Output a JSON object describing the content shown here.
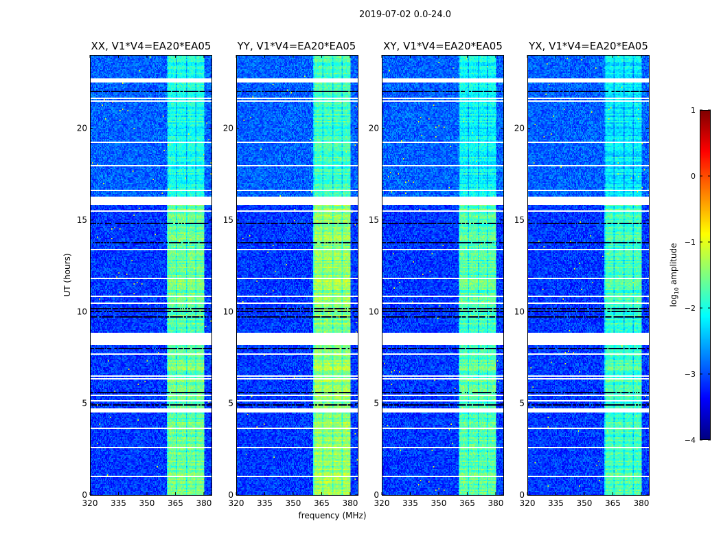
{
  "chart_data": {
    "type": "heatmap",
    "title": "2019-07-02 0.0-24.0",
    "xlabel": "frequency (MHz)",
    "ylabel": "UT (hours)",
    "xlim": [
      320,
      384
    ],
    "ylim": [
      0,
      24
    ],
    "xticks": [
      320,
      335,
      350,
      365,
      380
    ],
    "yticks": [
      0,
      5,
      10,
      15,
      20
    ],
    "panels": [
      {
        "title": "XX, V1*V4=EA20*EA05",
        "band_level": -1.6
      },
      {
        "title": "YY, V1*V4=EA20*EA05",
        "band_level": -1.4
      },
      {
        "title": "XY, V1*V4=EA20*EA05",
        "band_level": -1.7
      },
      {
        "title": "YX, V1*V4=EA20*EA05",
        "band_level": -1.8
      }
    ],
    "background_level": -3.1,
    "bright_band_mhz": [
      360.5,
      380
    ],
    "flagged_time_ranges_hours": [
      [
        8.2,
        8.75
      ],
      [
        15.85,
        16.3
      ],
      [
        22.5,
        22.75
      ]
    ],
    "colorbar": {
      "label_main": "log",
      "label_sub": "10",
      "label_rest": " amplitude",
      "range": [
        -4,
        1
      ],
      "ticks": [
        "1",
        "0",
        "−1",
        "−2",
        "−3",
        "−4"
      ],
      "tick_values": [
        1,
        0,
        -1,
        -2,
        -3,
        -4
      ],
      "colormap": "jet"
    }
  }
}
